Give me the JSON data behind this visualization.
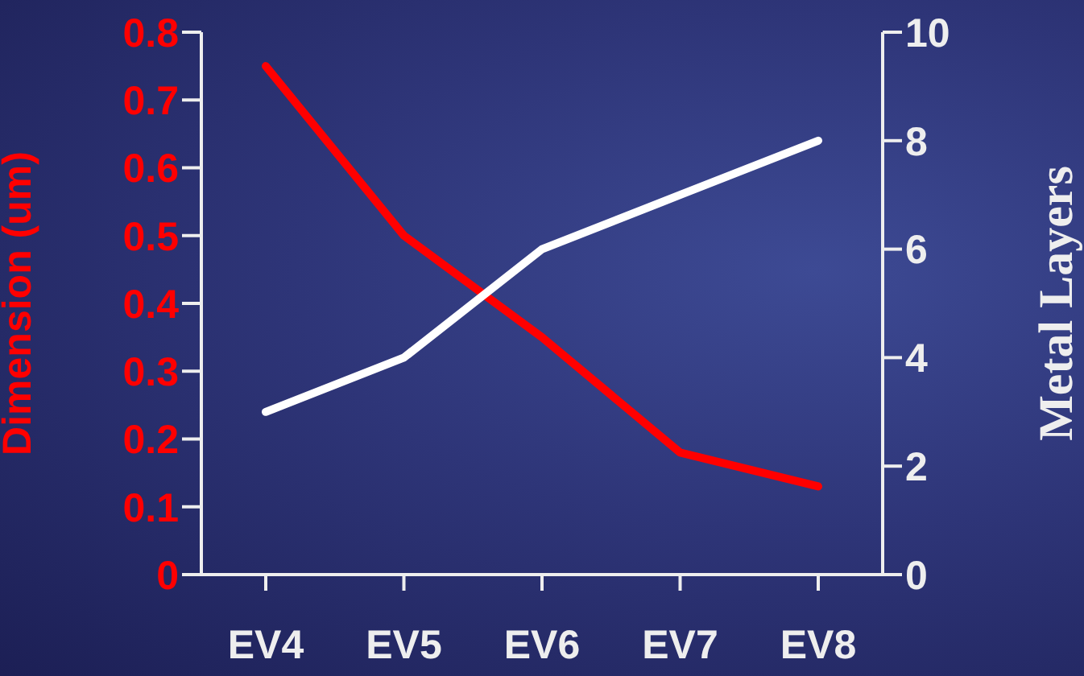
{
  "chart_data": {
    "type": "line",
    "categories": [
      "EV4",
      "EV5",
      "EV6",
      "EV7",
      "EV8"
    ],
    "ylabel": "Dimension (um)",
    "y2label": "Metal Layers",
    "ylim": [
      0,
      0.8
    ],
    "yticks": [
      0,
      0.1,
      0.2,
      0.3,
      0.4,
      0.5,
      0.6,
      0.7,
      0.8
    ],
    "y2lim": [
      0,
      10
    ],
    "y2ticks": [
      0,
      2,
      4,
      6,
      8,
      10
    ],
    "series": [
      {
        "color": "#ff0000",
        "values": [
          0.75,
          0.5,
          0.35,
          0.18,
          0.13
        ]
      },
      {
        "color": "#ffffff",
        "values": [
          3,
          4,
          6,
          7,
          8
        ],
        "axis": "y2"
      }
    ]
  }
}
